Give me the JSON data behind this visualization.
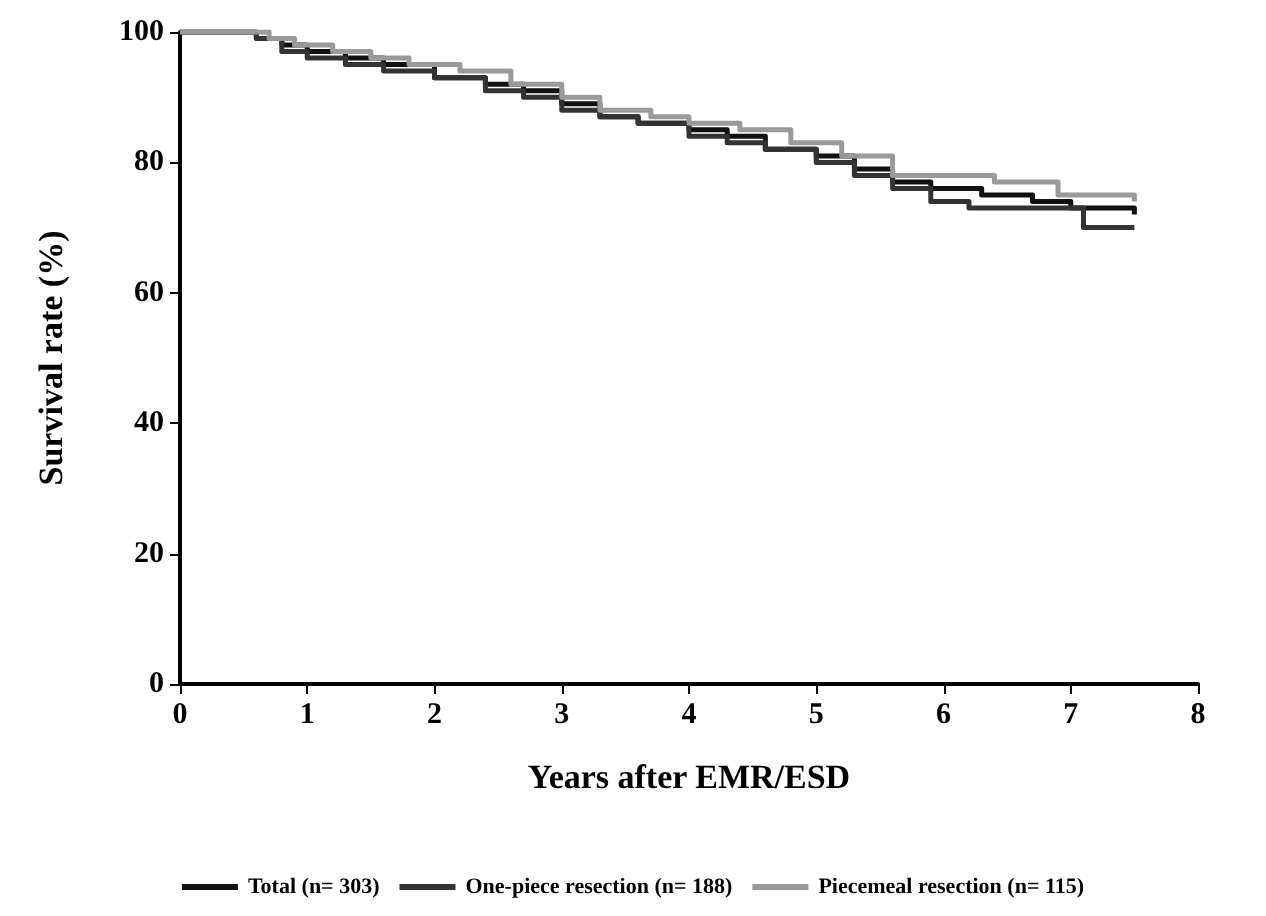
{
  "chart_data": {
    "type": "step",
    "xlabel": "Years after EMR/ESD",
    "ylabel": "Survival rate (%)",
    "xlim": [
      0,
      8
    ],
    "xticks": [
      0,
      1,
      2,
      3,
      4,
      5,
      6,
      7,
      8
    ],
    "ylim": [
      0,
      100
    ],
    "yticks": [
      0,
      20,
      40,
      60,
      80,
      100
    ],
    "grid": false,
    "legend": "bottom",
    "marker": "none",
    "line_style": "solid",
    "series": [
      {
        "name": "Total (n= 303)",
        "color": "#111111",
        "x": [
          0,
          0.5,
          0.6,
          0.8,
          1.0,
          1.3,
          1.6,
          2.0,
          2.4,
          2.7,
          3.0,
          3.3,
          3.6,
          4.0,
          4.3,
          4.6,
          5.0,
          5.3,
          5.6,
          5.9,
          6.3,
          6.7,
          7.0,
          7.5
        ],
        "values": [
          100,
          100,
          99,
          98,
          97,
          96,
          95,
          93,
          92,
          91,
          89,
          87,
          86,
          85,
          84,
          82,
          81,
          79,
          77,
          76,
          75,
          74,
          73,
          72
        ]
      },
      {
        "name": "One-piece resection (n= 188)",
        "color": "#333333",
        "x": [
          0,
          0.5,
          0.6,
          0.8,
          1.0,
          1.3,
          1.6,
          2.0,
          2.4,
          2.7,
          3.0,
          3.3,
          3.6,
          4.0,
          4.3,
          4.6,
          5.0,
          5.3,
          5.6,
          5.9,
          6.2,
          6.8,
          7.1,
          7.5
        ],
        "values": [
          100,
          100,
          99,
          97,
          96,
          95,
          94,
          93,
          91,
          90,
          88,
          87,
          86,
          84,
          83,
          82,
          80,
          78,
          76,
          74,
          73,
          73,
          70,
          70
        ]
      },
      {
        "name": "Piecemeal resection (n= 115)",
        "color": "#9a9a9a",
        "x": [
          0,
          0.5,
          0.7,
          0.9,
          1.2,
          1.5,
          1.8,
          2.2,
          2.6,
          3.0,
          3.3,
          3.7,
          4.0,
          4.4,
          4.8,
          5.2,
          5.6,
          6.0,
          6.4,
          6.9,
          7.5
        ],
        "values": [
          100,
          100,
          99,
          98,
          97,
          96,
          95,
          94,
          92,
          90,
          88,
          87,
          86,
          85,
          83,
          81,
          78,
          78,
          77,
          75,
          74
        ]
      }
    ]
  }
}
